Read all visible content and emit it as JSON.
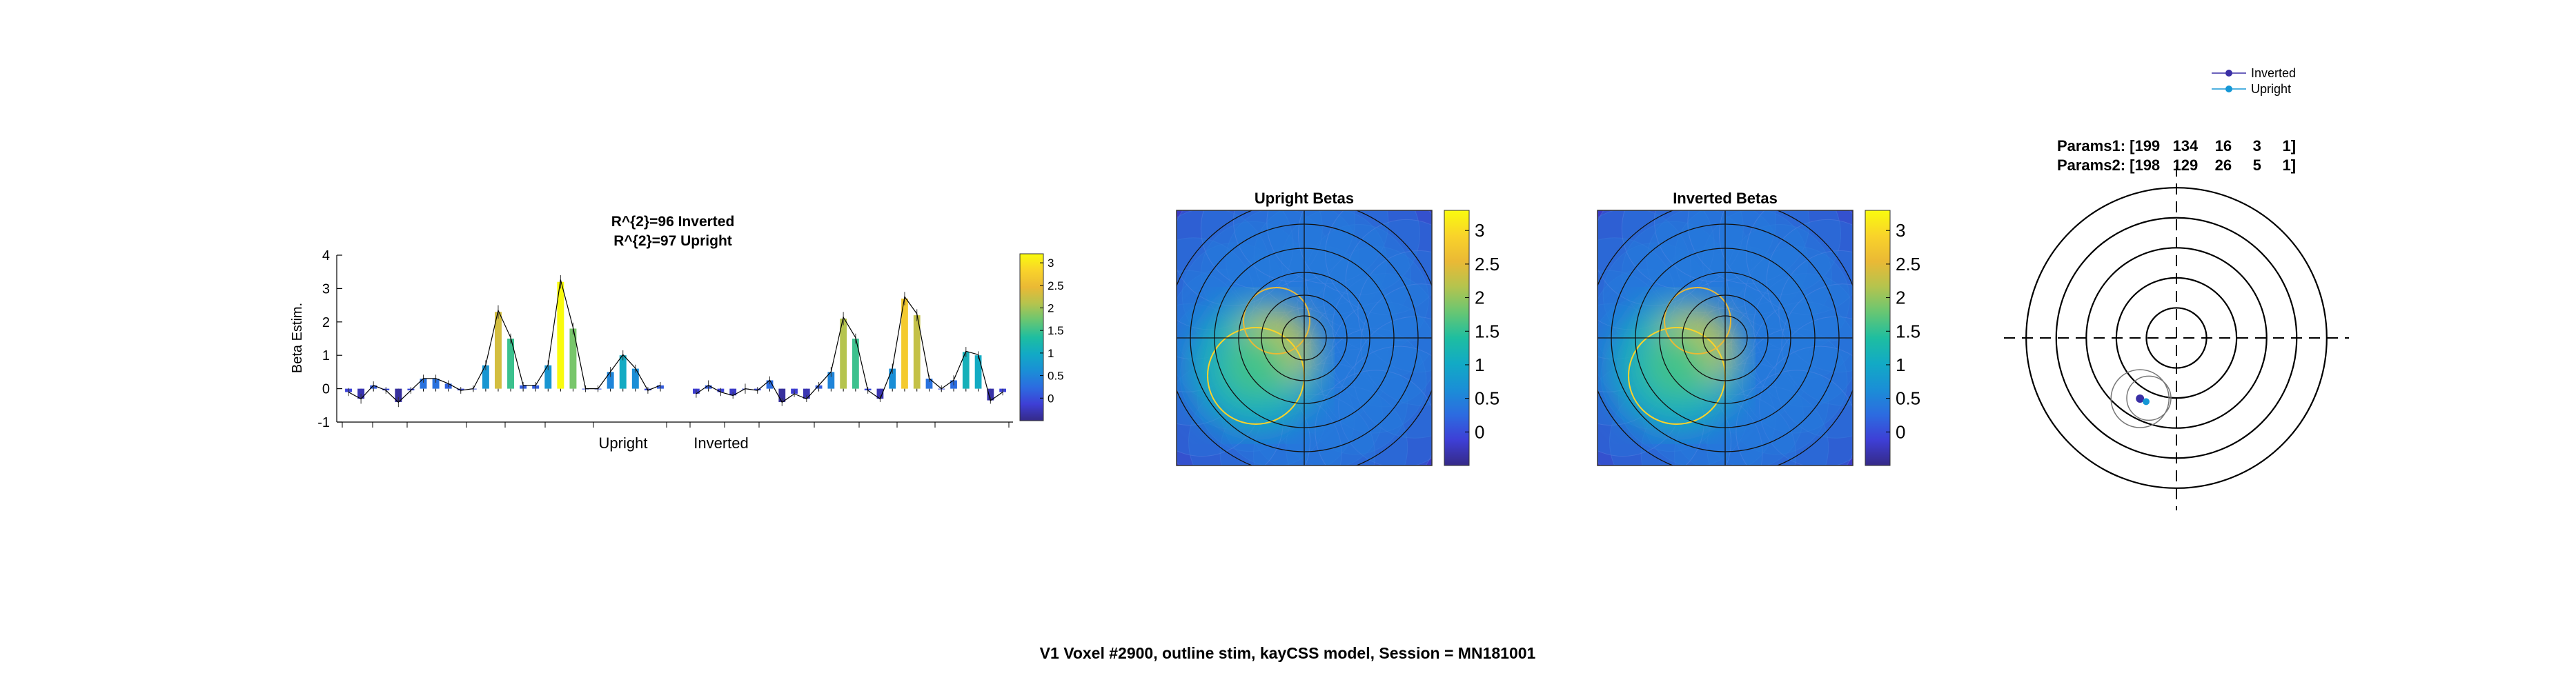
{
  "suptitle": "V1 Voxel #2900, outline stim, kayCSS model, Session = MN181001",
  "colors": {
    "parula": [
      "#352a87",
      "#3e3fd6",
      "#2c6ce0",
      "#1a8fd6",
      "#12aac5",
      "#1ebea0",
      "#67c673",
      "#b4c44e",
      "#eab935",
      "#f9d32a",
      "#f9fb0e"
    ],
    "inverted_marker": "#3a2fa5",
    "upright_marker": "#1597d6",
    "fit_line": "#000000"
  },
  "chart_data": [
    {
      "type": "bar",
      "title": [
        "R^{2}=96 Inverted",
        "R^{2}=97 Upright"
      ],
      "xlabel": "",
      "ylabel": "Beta Estim.",
      "ylim": [
        -1,
        4
      ],
      "yticks": [
        -1,
        0,
        1,
        2,
        3,
        4
      ],
      "group_labels": [
        "Upright",
        "Inverted"
      ],
      "clim": [
        -0.5,
        3.2
      ],
      "colorbar_ticks": [
        0,
        0.5,
        1,
        1.5,
        2,
        2.5,
        3
      ],
      "series": [
        {
          "name": "Upright",
          "values": [
            -0.1,
            -0.3,
            0.1,
            -0.05,
            -0.4,
            -0.05,
            0.3,
            0.3,
            0.15,
            -0.05,
            0.0,
            0.7,
            2.3,
            1.5,
            0.1,
            0.1,
            0.7,
            3.2,
            1.8,
            0.0,
            0.0,
            0.5,
            1.0,
            0.6,
            -0.05,
            0.1
          ]
        },
        {
          "name": "Inverted",
          "values": [
            -0.15,
            0.1,
            -0.1,
            -0.2,
            0.0,
            -0.05,
            0.25,
            -0.4,
            -0.15,
            -0.3,
            0.1,
            0.5,
            2.1,
            1.5,
            -0.05,
            -0.3,
            0.6,
            2.7,
            2.2,
            0.3,
            0.0,
            0.25,
            1.1,
            1.0,
            -0.35,
            -0.1
          ]
        }
      ],
      "errors": [
        0.12,
        0.15,
        0.12,
        0.1,
        0.15,
        0.1,
        0.12,
        0.12,
        0.1,
        0.1,
        0.1,
        0.15,
        0.2,
        0.15,
        0.1,
        0.1,
        0.15,
        0.2,
        0.18,
        0.1,
        0.1,
        0.15,
        0.15,
        0.12,
        0.1,
        0.1
      ]
    },
    {
      "type": "heatmap",
      "title": "Upright Betas",
      "clim": [
        -0.5,
        3.3
      ],
      "colorbar_ticks": [
        0,
        0.5,
        1,
        1.5,
        2,
        2.5,
        3
      ],
      "grid": true
    },
    {
      "type": "heatmap",
      "title": "Inverted Betas",
      "clim": [
        -0.5,
        3.3
      ],
      "colorbar_ticks": [
        0,
        0.5,
        1,
        1.5,
        2,
        2.5,
        3
      ],
      "grid": true
    },
    {
      "type": "scatter",
      "legend": [
        "Inverted",
        "Upright"
      ],
      "legend_position": "top-right",
      "params": [
        {
          "label": "Params1:",
          "values": [
            199,
            134,
            16,
            3,
            1
          ]
        },
        {
          "label": "Params2:",
          "values": [
            198,
            129,
            26,
            5,
            1
          ]
        }
      ],
      "params_text": [
        "Params1: [199   134    16     3     1]",
        "Params2: [198   129    26     5     1]"
      ],
      "points": [
        {
          "name": "Inverted",
          "x": -0.12,
          "y": -0.2
        },
        {
          "name": "Upright",
          "x": -0.1,
          "y": -0.21
        }
      ],
      "grid_rings": [
        0.1,
        0.2,
        0.3,
        0.4,
        0.5
      ]
    }
  ]
}
